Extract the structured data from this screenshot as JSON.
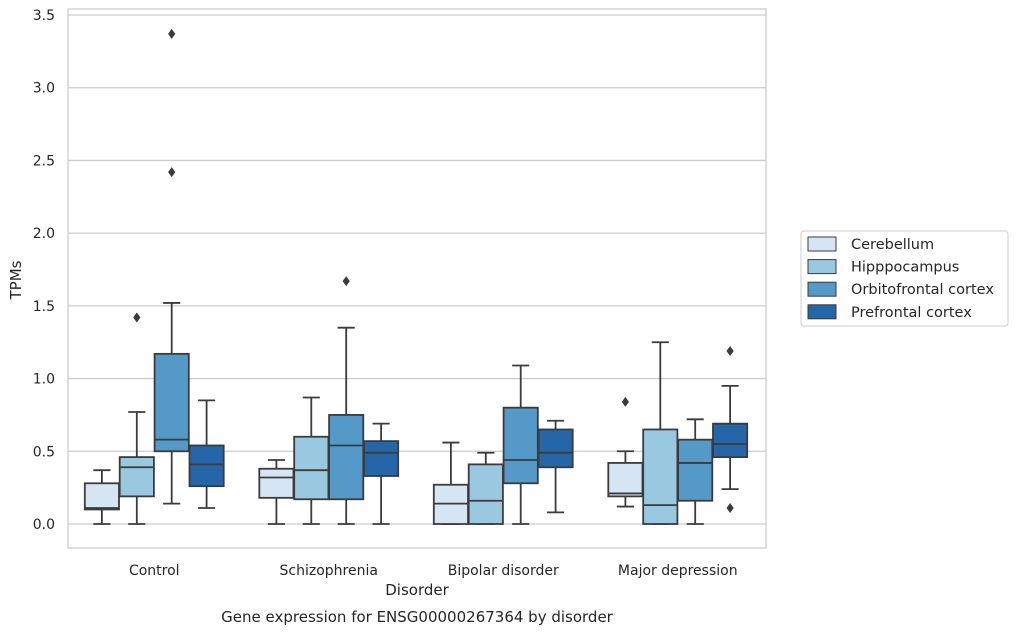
{
  "chart_data": {
    "type": "boxplot",
    "title": "Gene expression for ENSG00000267364 by disorder",
    "xlabel": "Disorder",
    "ylabel": "TPMs",
    "ylim": [
      -0.16,
      3.56
    ],
    "yticks": [
      "0.0",
      "0.5",
      "1.0",
      "1.5",
      "2.0",
      "2.5",
      "3.0",
      "3.5"
    ],
    "categories": [
      "Control",
      "Schizophrenia",
      "Bipolar disorder",
      "Major depression"
    ],
    "grid": "horizontal",
    "legend_position": "right",
    "series": [
      {
        "name": "Cerebellum",
        "color": "#d6e5f4",
        "boxes": [
          {
            "whislo": 0.0,
            "q1": 0.1,
            "med": 0.11,
            "q3": 0.28,
            "whishi": 0.37,
            "fliers": []
          },
          {
            "whislo": 0.0,
            "q1": 0.18,
            "med": 0.32,
            "q3": 0.38,
            "whishi": 0.44,
            "fliers": []
          },
          {
            "whislo": 0.0,
            "q1": 0.0,
            "med": 0.14,
            "q3": 0.27,
            "whishi": 0.56,
            "fliers": []
          },
          {
            "whislo": 0.12,
            "q1": 0.19,
            "med": 0.21,
            "q3": 0.42,
            "whishi": 0.5,
            "fliers": [
              0.84
            ]
          }
        ]
      },
      {
        "name": "Hipppocampus",
        "color": "#9ac8e0",
        "boxes": [
          {
            "whislo": 0.0,
            "q1": 0.19,
            "med": 0.39,
            "q3": 0.46,
            "whishi": 0.77,
            "fliers": [
              1.42
            ]
          },
          {
            "whislo": 0.0,
            "q1": 0.17,
            "med": 0.37,
            "q3": 0.6,
            "whishi": 0.87,
            "fliers": []
          },
          {
            "whislo": 0.0,
            "q1": 0.0,
            "med": 0.16,
            "q3": 0.41,
            "whishi": 0.49,
            "fliers": []
          },
          {
            "whislo": 0.0,
            "q1": 0.0,
            "med": 0.13,
            "q3": 0.65,
            "whishi": 1.25,
            "fliers": []
          }
        ]
      },
      {
        "name": "Orbitofrontal cortex",
        "color": "#5499c8",
        "boxes": [
          {
            "whislo": 0.14,
            "q1": 0.5,
            "med": 0.58,
            "q3": 1.17,
            "whishi": 1.52,
            "fliers": [
              2.42,
              3.37
            ]
          },
          {
            "whislo": 0.0,
            "q1": 0.17,
            "med": 0.54,
            "q3": 0.75,
            "whishi": 1.35,
            "fliers": [
              1.67
            ]
          },
          {
            "whislo": 0.0,
            "q1": 0.28,
            "med": 0.44,
            "q3": 0.8,
            "whishi": 1.09,
            "fliers": []
          },
          {
            "whislo": 0.0,
            "q1": 0.16,
            "med": 0.42,
            "q3": 0.58,
            "whishi": 0.72,
            "fliers": []
          }
        ]
      },
      {
        "name": "Prefrontal cortex",
        "color": "#2466a7",
        "boxes": [
          {
            "whislo": 0.11,
            "q1": 0.26,
            "med": 0.41,
            "q3": 0.54,
            "whishi": 0.85,
            "fliers": []
          },
          {
            "whislo": 0.0,
            "q1": 0.33,
            "med": 0.49,
            "q3": 0.57,
            "whishi": 0.69,
            "fliers": []
          },
          {
            "whislo": 0.08,
            "q1": 0.39,
            "med": 0.49,
            "q3": 0.65,
            "whishi": 0.71,
            "fliers": []
          },
          {
            "whislo": 0.24,
            "q1": 0.46,
            "med": 0.55,
            "q3": 0.69,
            "whishi": 0.95,
            "fliers": [
              0.11,
              1.19
            ]
          }
        ]
      }
    ]
  }
}
